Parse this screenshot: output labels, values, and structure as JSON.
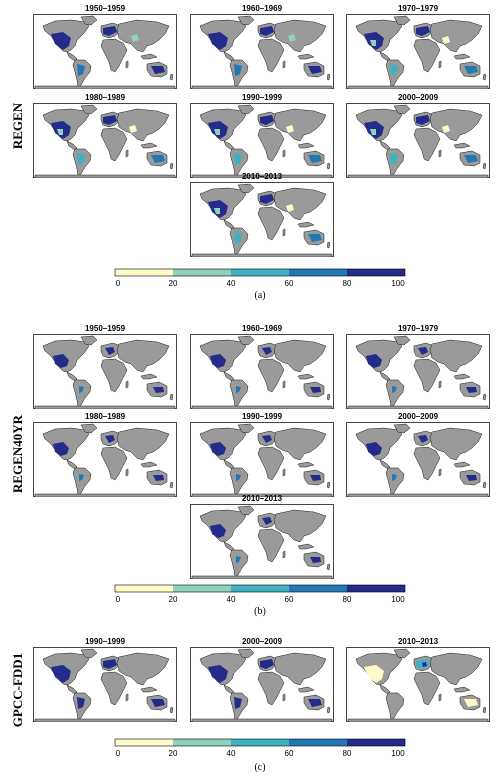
{
  "colors": {
    "ocean": "#ffffff",
    "land_no_data": "#9a9a9a",
    "coast": "#1a1a1a",
    "scale": [
      "#fdfbc9",
      "#8fd1ba",
      "#40b1c2",
      "#2278b3",
      "#232c8a"
    ]
  },
  "figure_a": {
    "row_label": "REGEN",
    "caption": "(a)",
    "panels": [
      "1950–1959",
      "1960–1969",
      "1970–1979",
      "1980–1989",
      "1990–1999",
      "2000–2009",
      "2010–2013"
    ],
    "colorbar_ticks": [
      "0",
      "20",
      "40",
      "60",
      "80",
      "100"
    ]
  },
  "figure_b": {
    "row_label": "REGEN40YR",
    "caption": "(b)",
    "panels": [
      "1950–1959",
      "1960–1969",
      "1970–1979",
      "1980–1989",
      "1990–1999",
      "2000–2009",
      "2010–2013"
    ],
    "colorbar_ticks": [
      "0",
      "20",
      "40",
      "60",
      "80",
      "100"
    ]
  },
  "figure_c": {
    "row_label": "GPCC-FDD1",
    "caption": "(c)",
    "panels": [
      "1990–1999",
      "2000–2009",
      "2010–2013"
    ],
    "colorbar_ticks": [
      "0",
      "20",
      "40",
      "60",
      "80",
      "100"
    ]
  }
}
